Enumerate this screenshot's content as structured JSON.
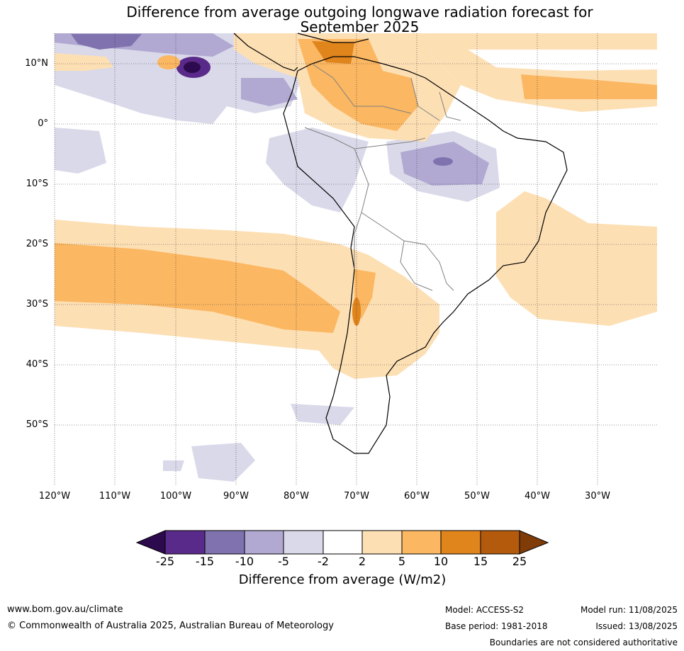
{
  "title_line1": "Difference from average outgoing longwave radiation forecast for",
  "title_line2": "September 2025",
  "lat_labels": [
    "10°N",
    "0°",
    "10°S",
    "20°S",
    "30°S",
    "40°S",
    "50°S"
  ],
  "lon_labels": [
    "120°W",
    "110°W",
    "100°W",
    "90°W",
    "80°W",
    "70°W",
    "60°W",
    "50°W",
    "40°W",
    "30°W"
  ],
  "colorbar": {
    "ticks": [
      "-25",
      "-15",
      "-10",
      "-5",
      "-2",
      "2",
      "5",
      "10",
      "15",
      "25"
    ],
    "label": "Difference from average (W/m2)",
    "colors": [
      "#2d0a4e",
      "#5a2a8a",
      "#8072ae",
      "#b1a9d1",
      "#d9d9ea",
      "#ffffff",
      "#fddfb4",
      "#fbb762",
      "#e0841c",
      "#b45a0c",
      "#7f3b08"
    ]
  },
  "footer": {
    "url": "www.bom.gov.au/climate",
    "copyright": "© Commonwealth of Australia 2025, Australian Bureau of Meteorology",
    "model": "Model: ACCESS-S2",
    "base_period": "Base period: 1981-2018",
    "model_run": "Model run: 11/08/2025",
    "issued": "Issued: 13/08/2025",
    "disclaimer": "Boundaries are not considered authoritative"
  }
}
